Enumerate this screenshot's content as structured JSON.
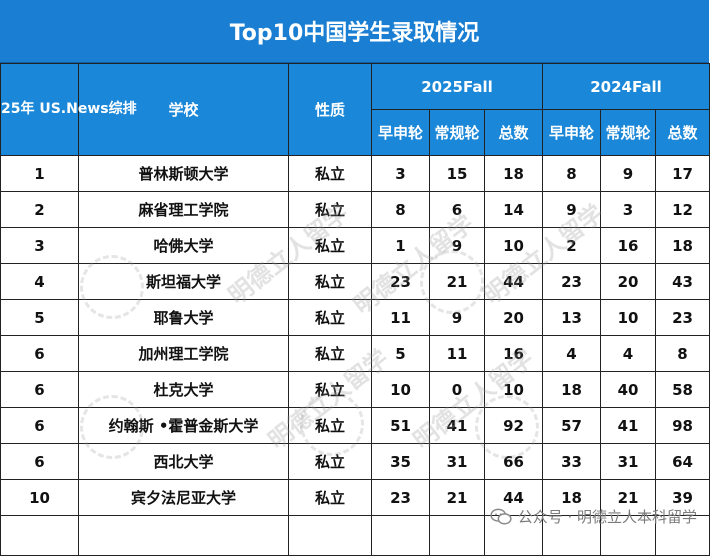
{
  "title": "Top10中国学生录取情况",
  "headers": {
    "rank": "25年 US.News综排",
    "school": "学校",
    "type": "性质",
    "fall2025": "2025Fall",
    "fall2024": "2024Fall",
    "early": "早申轮",
    "regular": "常规轮",
    "total": "总数"
  },
  "rows": [
    {
      "rank": "1",
      "school": "普林斯顿大学",
      "type": "私立",
      "e25": "3",
      "r25": "15",
      "t25": "18",
      "e24": "8",
      "r24": "9",
      "t24": "17"
    },
    {
      "rank": "2",
      "school": "麻省理工学院",
      "type": "私立",
      "e25": "8",
      "r25": "6",
      "t25": "14",
      "e24": "9",
      "r24": "3",
      "t24": "12"
    },
    {
      "rank": "3",
      "school": "哈佛大学",
      "type": "私立",
      "e25": "1",
      "r25": "9",
      "t25": "10",
      "e24": "2",
      "r24": "16",
      "t24": "18"
    },
    {
      "rank": "4",
      "school": "斯坦福大学",
      "type": "私立",
      "e25": "23",
      "r25": "21",
      "t25": "44",
      "e24": "23",
      "r24": "20",
      "t24": "43"
    },
    {
      "rank": "5",
      "school": "耶鲁大学",
      "type": "私立",
      "e25": "11",
      "r25": "9",
      "t25": "20",
      "e24": "13",
      "r24": "10",
      "t24": "23"
    },
    {
      "rank": "6",
      "school": "加州理工学院",
      "type": "私立",
      "e25": "5",
      "r25": "11",
      "t25": "16",
      "e24": "4",
      "r24": "4",
      "t24": "8"
    },
    {
      "rank": "6",
      "school": "杜克大学",
      "type": "私立",
      "e25": "10",
      "r25": "0",
      "t25": "10",
      "e24": "18",
      "r24": "40",
      "t24": "58"
    },
    {
      "rank": "6",
      "school": "约翰斯 •霍普金斯大学",
      "type": "私立",
      "e25": "51",
      "r25": "41",
      "t25": "92",
      "e24": "57",
      "r24": "41",
      "t24": "98"
    },
    {
      "rank": "6",
      "school": "西北大学",
      "type": "私立",
      "e25": "35",
      "r25": "31",
      "t25": "66",
      "e24": "33",
      "r24": "31",
      "t24": "64"
    },
    {
      "rank": "10",
      "school": "宾夕法尼亚大学",
      "type": "私立",
      "e25": "23",
      "r25": "21",
      "t25": "44",
      "e24": "18",
      "r24": "21",
      "t24": "39"
    }
  ],
  "footer_watermark": "公众号 · 明德立人本科留学",
  "watermark_text": "明德立人留学",
  "icons": {
    "footer": "wechat-icon"
  },
  "colors": {
    "header_bg": "#1a87d8",
    "title_bg": "#1a7fd3",
    "accent": "#3fae4a"
  }
}
